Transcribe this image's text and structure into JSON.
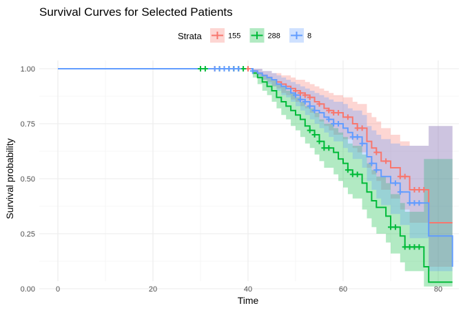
{
  "chart_data": {
    "type": "line",
    "subtype": "kaplan-meier survival curve with confidence bands",
    "title": "Survival Curves for Selected Patients",
    "xlabel": "Time",
    "ylabel": "Survival probability",
    "xlim": [
      0,
      83
    ],
    "ylim": [
      0,
      1
    ],
    "x_ticks": [
      "0",
      "20",
      "40",
      "60",
      "80"
    ],
    "y_ticks": [
      "0.00",
      "0.25",
      "0.50",
      "0.75",
      "1.00"
    ],
    "grid": true,
    "legend": {
      "title": "Strata",
      "position": "top"
    },
    "series": [
      {
        "name": "155",
        "color": "#F8766D",
        "x": [
          0,
          33,
          41,
          42,
          43,
          44,
          45,
          46,
          47,
          48,
          49,
          50,
          51,
          52,
          53,
          54,
          55,
          56,
          57,
          58,
          60,
          62,
          63,
          65,
          66,
          67,
          68,
          70,
          72,
          74,
          78,
          83
        ],
        "y": [
          1.0,
          1.0,
          0.99,
          0.98,
          0.97,
          0.96,
          0.95,
          0.94,
          0.93,
          0.92,
          0.91,
          0.9,
          0.89,
          0.88,
          0.87,
          0.85,
          0.84,
          0.82,
          0.81,
          0.8,
          0.78,
          0.75,
          0.73,
          0.67,
          0.64,
          0.62,
          0.58,
          0.55,
          0.51,
          0.45,
          0.3,
          0.3
        ],
        "lower": [
          1.0,
          1.0,
          0.98,
          0.97,
          0.95,
          0.94,
          0.92,
          0.91,
          0.89,
          0.88,
          0.86,
          0.85,
          0.83,
          0.82,
          0.8,
          0.78,
          0.76,
          0.74,
          0.72,
          0.7,
          0.68,
          0.64,
          0.62,
          0.55,
          0.52,
          0.49,
          0.45,
          0.41,
          0.36,
          0.3,
          0.1,
          0.1
        ],
        "upper": [
          1.0,
          1.0,
          1.0,
          1.0,
          0.99,
          0.99,
          0.98,
          0.98,
          0.97,
          0.97,
          0.96,
          0.95,
          0.95,
          0.94,
          0.93,
          0.92,
          0.91,
          0.9,
          0.89,
          0.88,
          0.87,
          0.85,
          0.84,
          0.8,
          0.78,
          0.76,
          0.73,
          0.7,
          0.67,
          0.65,
          0.74,
          0.74
        ],
        "censor_x": [
          33,
          34,
          35,
          36,
          37,
          38,
          40,
          50,
          51,
          52,
          53,
          55,
          57,
          58,
          59,
          61,
          63,
          64,
          67,
          69,
          72,
          73,
          75,
          76,
          77
        ]
      },
      {
        "name": "288",
        "color": "#00BA38",
        "x": [
          0,
          34,
          41,
          42,
          43,
          44,
          45,
          46,
          47,
          48,
          49,
          50,
          51,
          52,
          53,
          54,
          55,
          56,
          58,
          59,
          60,
          61,
          62,
          64,
          65,
          66,
          67,
          69,
          70,
          72,
          73,
          77,
          78,
          80,
          83
        ],
        "y": [
          1.0,
          1.0,
          0.98,
          0.96,
          0.94,
          0.92,
          0.9,
          0.87,
          0.85,
          0.83,
          0.81,
          0.79,
          0.77,
          0.74,
          0.72,
          0.7,
          0.67,
          0.64,
          0.62,
          0.59,
          0.57,
          0.54,
          0.52,
          0.48,
          0.44,
          0.4,
          0.37,
          0.33,
          0.28,
          0.24,
          0.19,
          0.1,
          0.03,
          0.03,
          0.03
        ],
        "lower": [
          1.0,
          1.0,
          0.96,
          0.93,
          0.9,
          0.88,
          0.85,
          0.82,
          0.79,
          0.77,
          0.74,
          0.72,
          0.69,
          0.66,
          0.64,
          0.61,
          0.58,
          0.55,
          0.52,
          0.49,
          0.46,
          0.43,
          0.41,
          0.36,
          0.32,
          0.28,
          0.25,
          0.21,
          0.16,
          0.12,
          0.08,
          0.01,
          0.01,
          0.01,
          0.01
        ],
        "upper": [
          1.0,
          1.0,
          0.99,
          0.98,
          0.97,
          0.96,
          0.95,
          0.93,
          0.92,
          0.9,
          0.89,
          0.87,
          0.85,
          0.83,
          0.82,
          0.8,
          0.77,
          0.75,
          0.73,
          0.71,
          0.69,
          0.66,
          0.65,
          0.61,
          0.57,
          0.54,
          0.51,
          0.48,
          0.43,
          0.39,
          0.35,
          0.59,
          0.59,
          0.59,
          0.59
        ],
        "censor_x": [
          30,
          31,
          34,
          35,
          36,
          37,
          38,
          39,
          53,
          54,
          55,
          56,
          57,
          61,
          62,
          63,
          70,
          71,
          73,
          74,
          75,
          76
        ]
      },
      {
        "name": "8",
        "color": "#619CFF",
        "x": [
          0,
          33,
          41,
          42,
          43,
          44,
          45,
          46,
          47,
          48,
          49,
          50,
          51,
          52,
          53,
          54,
          55,
          56,
          57,
          58,
          60,
          61,
          62,
          64,
          65,
          66,
          67,
          68,
          70,
          72,
          74,
          78,
          83
        ],
        "y": [
          1.0,
          1.0,
          0.99,
          0.98,
          0.97,
          0.96,
          0.95,
          0.93,
          0.92,
          0.91,
          0.89,
          0.88,
          0.86,
          0.85,
          0.83,
          0.81,
          0.8,
          0.78,
          0.77,
          0.75,
          0.73,
          0.71,
          0.69,
          0.66,
          0.6,
          0.57,
          0.54,
          0.51,
          0.48,
          0.44,
          0.39,
          0.24,
          0.1
        ],
        "lower": [
          1.0,
          1.0,
          0.98,
          0.96,
          0.95,
          0.93,
          0.92,
          0.9,
          0.88,
          0.87,
          0.85,
          0.83,
          0.81,
          0.79,
          0.77,
          0.75,
          0.73,
          0.71,
          0.69,
          0.67,
          0.64,
          0.62,
          0.59,
          0.55,
          0.49,
          0.45,
          0.41,
          0.38,
          0.34,
          0.29,
          0.23,
          0.08,
          0.08
        ],
        "upper": [
          1.0,
          1.0,
          1.0,
          1.0,
          0.99,
          0.99,
          0.98,
          0.97,
          0.96,
          0.95,
          0.94,
          0.93,
          0.92,
          0.91,
          0.9,
          0.89,
          0.88,
          0.87,
          0.86,
          0.85,
          0.84,
          0.82,
          0.81,
          0.79,
          0.74,
          0.72,
          0.7,
          0.68,
          0.66,
          0.65,
          0.65,
          0.74,
          0.74
        ],
        "censor_x": [
          33,
          34,
          35,
          36,
          37,
          38,
          41,
          50,
          51,
          52,
          53,
          54,
          57,
          58,
          59,
          62,
          63,
          64,
          66,
          67,
          71,
          72,
          74,
          75,
          76
        ]
      }
    ]
  }
}
